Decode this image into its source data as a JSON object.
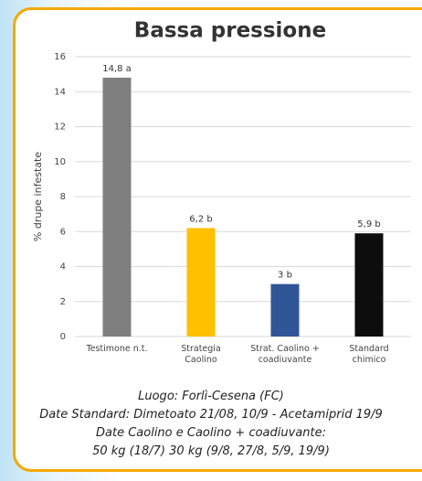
{
  "chart_data": {
    "type": "bar",
    "title": "Bassa pressione",
    "y_label": "% drupe infestate",
    "categories": [
      "Testimone n.t.",
      "Strategia\nCaolino",
      "Strat. Caolino +\ncoadiuvante",
      "Standard\nchimico"
    ],
    "values": [
      14.8,
      6.2,
      3,
      5.9
    ],
    "value_labels": [
      "14,8 a",
      "6,2 b",
      "3 b",
      "5,9 b"
    ],
    "colors": [
      "#7f7f7f",
      "#ffc000",
      "#2f5597",
      "#0d0d0d"
    ],
    "ylim": [
      0,
      16
    ],
    "yticks": [
      0,
      2,
      4,
      6,
      8,
      10,
      12,
      14,
      16
    ],
    "grid": true,
    "caption": [
      "Luogo: Forlì-Cesena (FC)",
      "Date Standard: Dimetoato 21/08, 10/9 - Acetamiprid 19/9",
      "Date Caolino e Caolino + coadiuvante:",
      "50 kg (18/7) 30 kg (9/8, 27/8, 5/9, 19/9)"
    ]
  }
}
